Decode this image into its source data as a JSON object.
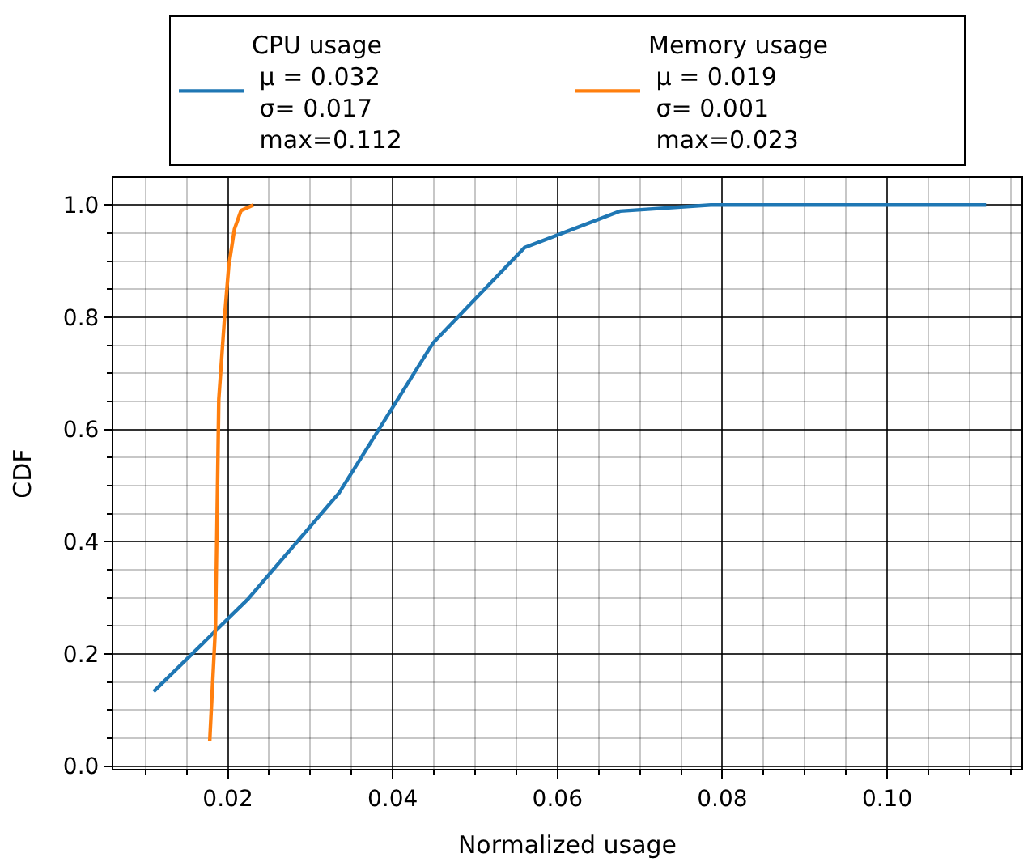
{
  "chart_data": {
    "type": "line",
    "xlabel": "Normalized usage",
    "ylabel": "CDF",
    "xlim": [
      0.0061,
      0.1163
    ],
    "xticks": [
      {
        "value": 0.02,
        "label": "0.02"
      },
      {
        "value": 0.04,
        "label": "0.04"
      },
      {
        "value": 0.06,
        "label": "0.06"
      },
      {
        "value": 0.08,
        "label": "0.08"
      },
      {
        "value": 0.1,
        "label": "0.10"
      }
    ],
    "ylim": [
      -0.005,
      1.048
    ],
    "yticks": [
      {
        "value": 0,
        "label": "0.0"
      },
      {
        "value": 0.2,
        "label": "0.2"
      },
      {
        "value": 0.4,
        "label": "0.4"
      },
      {
        "value": 0.6,
        "label": "0.6"
      },
      {
        "value": 0.8,
        "label": "0.8"
      },
      {
        "value": 1,
        "label": "1.0"
      }
    ],
    "grid": true,
    "legend": "top",
    "marker": "none",
    "line_style": "solid",
    "series": [
      {
        "name": "CPU usage\n μ = 0.032\n σ= 0.017\n max=0.112",
        "color": "#1f77b4",
        "x": [
          0.011,
          0.0224,
          0.0335,
          0.0449,
          0.056,
          0.0676,
          0.0786,
          0.112
        ],
        "values": [
          0.133,
          0.297,
          0.487,
          0.754,
          0.924,
          0.989,
          1.0,
          1.0
        ]
      },
      {
        "name": "Memory usage\n μ = 0.019\n σ= 0.001\n max=0.023",
        "color": "#ff7f0e",
        "x": [
          0.0178,
          0.0185,
          0.0189,
          0.0196,
          0.0201,
          0.0208,
          0.0216,
          0.0231
        ],
        "values": [
          0.045,
          0.25,
          0.654,
          0.8,
          0.89,
          0.957,
          0.99,
          1.0
        ]
      }
    ]
  }
}
